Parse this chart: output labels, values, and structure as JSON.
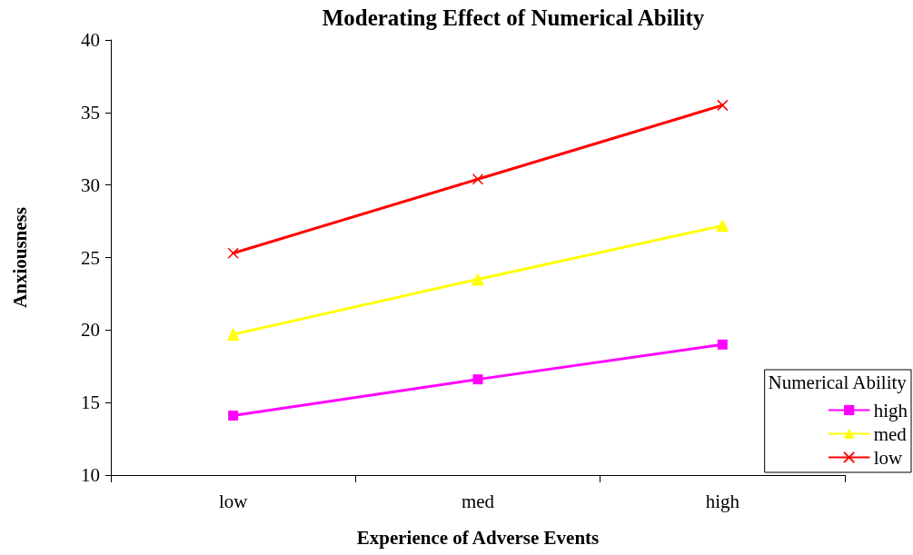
{
  "chart_data": {
    "type": "line",
    "title": "Moderating Effect of Numerical Ability",
    "xlabel": "Experience of Adverse Events",
    "ylabel": "Anxiousness",
    "legend_title": "Numerical Ability",
    "categories": [
      "low",
      "med",
      "high"
    ],
    "series": [
      {
        "name": "high",
        "color": "#ff00ff",
        "marker": "square",
        "values": [
          14.1,
          16.6,
          19.0
        ]
      },
      {
        "name": "med",
        "color": "#ffff00",
        "marker": "triangle",
        "values": [
          19.7,
          23.5,
          27.2
        ]
      },
      {
        "name": "low",
        "color": "#ff0000",
        "marker": "cross",
        "values": [
          25.3,
          30.4,
          35.5
        ]
      }
    ],
    "ylim": [
      10,
      40
    ],
    "yticks": [
      10,
      15,
      20,
      25,
      30,
      35,
      40
    ],
    "grid": false,
    "legend": "bottom right"
  }
}
